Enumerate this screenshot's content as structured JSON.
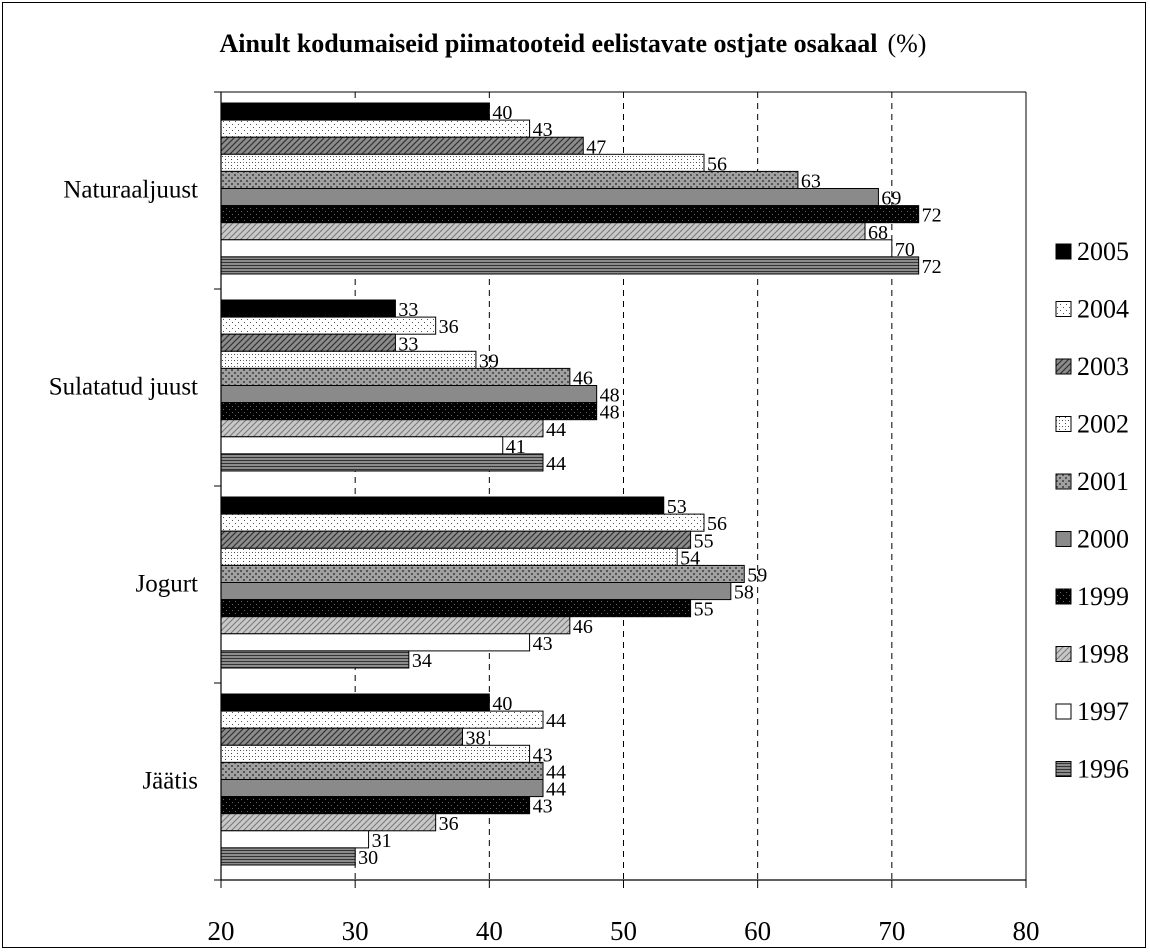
{
  "chart_data": {
    "type": "bar",
    "orientation": "horizontal",
    "title": "Ainult kodumaiseid piimatooteid eelistavate ostjate osakaal",
    "title_unit": "(%)",
    "xlabel": "",
    "ylabel": "",
    "xlim": [
      20,
      80
    ],
    "xticks": [
      20,
      30,
      40,
      50,
      60,
      70,
      80
    ],
    "grid": "vertical-dashed",
    "legend_position": "right",
    "categories": [
      "Naturaaljuust",
      "Sulatatud juust",
      "Jogurt",
      "Jäätis"
    ],
    "series": [
      {
        "name": "2005",
        "values": [
          40,
          33,
          53,
          40
        ]
      },
      {
        "name": "2004",
        "values": [
          43,
          36,
          56,
          44
        ]
      },
      {
        "name": "2003",
        "values": [
          47,
          33,
          55,
          38
        ]
      },
      {
        "name": "2002",
        "values": [
          56,
          39,
          54,
          43
        ]
      },
      {
        "name": "2001",
        "values": [
          63,
          46,
          59,
          44
        ]
      },
      {
        "name": "2000",
        "values": [
          69,
          48,
          58,
          44
        ]
      },
      {
        "name": "1999",
        "values": [
          72,
          48,
          55,
          43
        ]
      },
      {
        "name": "1998",
        "values": [
          68,
          44,
          46,
          36
        ]
      },
      {
        "name": "1997",
        "values": [
          70,
          41,
          43,
          31
        ]
      },
      {
        "name": "1996",
        "values": [
          72,
          44,
          34,
          30
        ]
      }
    ]
  },
  "series_style": {
    "2005": {
      "fill": "#000000",
      "pattern": "solid"
    },
    "2004": {
      "fill": "#ffffff",
      "pattern": "dots-sparse"
    },
    "2003": {
      "fill": "#8c8c8c",
      "pattern": "diagonal"
    },
    "2002": {
      "fill": "#ffffff",
      "pattern": "dots"
    },
    "2001": {
      "fill": "#a0a0a0",
      "pattern": "checker"
    },
    "2000": {
      "fill": "#8a8a8a",
      "pattern": "solid"
    },
    "1999": {
      "fill": "#000000",
      "pattern": "dots-dark"
    },
    "1998": {
      "fill": "#c8c8c8",
      "pattern": "diagonal-light"
    },
    "1997": {
      "fill": "#ffffff",
      "pattern": "solid"
    },
    "1996": {
      "fill": "#8c8c8c",
      "pattern": "horizontal"
    }
  }
}
